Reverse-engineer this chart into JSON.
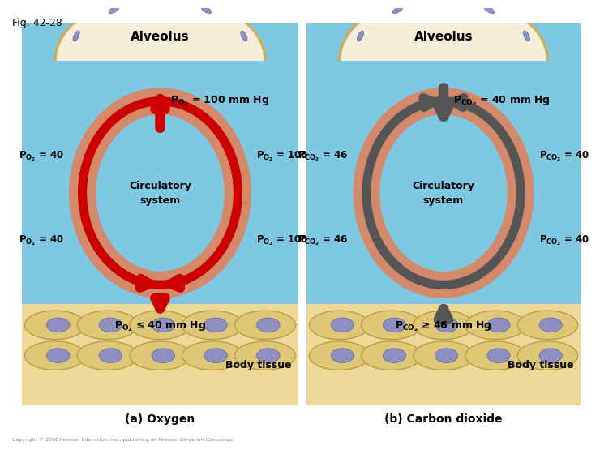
{
  "fig_label": "Fig. 42-28",
  "bg_color": "#7EC8E3",
  "alveolus_fill": "#F5EFDA",
  "alveolus_border": "#C8B060",
  "capillary_color": "#D4896A",
  "tissue_color": "#EDD898",
  "tissue_cell_color": "#DEC878",
  "tissue_cell_border": "#B8A040",
  "tissue_nucleus_color": "#9090C0",
  "arrow_o2": "#CC0000",
  "arrow_co2": "#555555",
  "copyright": "Copyright © 2008 Pearson Education, Inc., publishing as Pearson Benjamin Cummings.",
  "panel_a_title": "Alveolus",
  "panel_a_sub": "(a) Oxygen",
  "panel_a_top": "$\\mathbf{P_{O_2}}$ = 100 mm Hg",
  "panel_a_lt": "$\\mathbf{P_{O_2}}$ = 40",
  "panel_a_rt": "$\\mathbf{P_{O_2}}$ = 100",
  "panel_a_lb": "$\\mathbf{P_{O_2}}$ = 40",
  "panel_a_rb": "$\\mathbf{P_{O_2}}$ = 100",
  "panel_a_bot": "$\\mathbf{P_{O_2}}$ ≤ 40 mm Hg",
  "panel_a_center": "Circulatory\nsystem",
  "panel_b_title": "Alveolus",
  "panel_b_sub": "(b) Carbon dioxide",
  "panel_b_top": "$\\mathbf{P_{CO_2}}$ = 40 mm Hg",
  "panel_b_lt": "$\\mathbf{P_{CO_2}}$ = 46",
  "panel_b_rt": "$\\mathbf{P_{CO_2}}$ = 40",
  "panel_b_lb": "$\\mathbf{P_{CO_2}}$ = 46",
  "panel_b_rb": "$\\mathbf{P_{CO_2}}$ = 40",
  "panel_b_bot": "$\\mathbf{P_{CO_2}}$ ≥ 46 mm Hg",
  "panel_b_center": "Circulatory\nsystem",
  "body_tissue": "Body tissue"
}
